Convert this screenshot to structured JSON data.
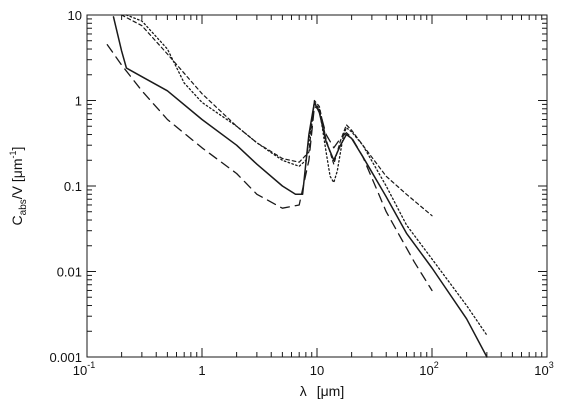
{
  "chart_data": {
    "type": "line",
    "title": "",
    "xlabel": {
      "symbol": "λ",
      "unit_open": "[",
      "unit": "μm",
      "unit_close": "]"
    },
    "ylabel": {
      "base": "C",
      "sub": "abs",
      "rest": "/V  [μm",
      "sup": "-1",
      "close": "]"
    },
    "x_scale": "log",
    "y_scale": "log",
    "xlim": [
      0.1,
      1000
    ],
    "ylim": [
      0.001,
      10
    ],
    "x_ticks": [
      {
        "value": 0.1,
        "base": "10",
        "exp": "-1"
      },
      {
        "value": 1,
        "base": "1",
        "exp": ""
      },
      {
        "value": 10,
        "base": "10",
        "exp": ""
      },
      {
        "value": 100,
        "base": "10",
        "exp": "2"
      },
      {
        "value": 1000,
        "base": "10",
        "exp": "3"
      }
    ],
    "y_ticks": [
      {
        "value": 0.001,
        "label": "0.001"
      },
      {
        "value": 0.01,
        "label": "0.01"
      },
      {
        "value": 0.1,
        "label": "0.1"
      },
      {
        "value": 1,
        "label": "1"
      },
      {
        "value": 10,
        "label": "10"
      }
    ],
    "grid": false,
    "legend": "none",
    "series": [
      {
        "style": "solid",
        "points": [
          [
            0.17,
            9.5
          ],
          [
            0.2,
            3.8
          ],
          [
            0.22,
            2.4
          ],
          [
            0.3,
            1.9
          ],
          [
            0.5,
            1.3
          ],
          [
            1,
            0.6
          ],
          [
            2,
            0.3
          ],
          [
            3,
            0.18
          ],
          [
            5,
            0.1
          ],
          [
            6.5,
            0.08
          ],
          [
            7.5,
            0.08
          ],
          [
            8.5,
            0.4
          ],
          [
            9.5,
            0.95
          ],
          [
            10.5,
            0.72
          ],
          [
            12,
            0.33
          ],
          [
            14,
            0.2
          ],
          [
            16,
            0.3
          ],
          [
            18,
            0.4
          ],
          [
            20,
            0.36
          ],
          [
            25,
            0.22
          ],
          [
            40,
            0.075
          ],
          [
            60,
            0.028
          ],
          [
            100,
            0.011
          ],
          [
            200,
            0.0028
          ],
          [
            300,
            0.001
          ]
        ]
      },
      {
        "style": "dashed",
        "points": [
          [
            0.15,
            4.5
          ],
          [
            0.2,
            2.6
          ],
          [
            0.3,
            1.3
          ],
          [
            0.5,
            0.6
          ],
          [
            1,
            0.28
          ],
          [
            2,
            0.14
          ],
          [
            3,
            0.08
          ],
          [
            5,
            0.055
          ],
          [
            7,
            0.06
          ],
          [
            8.5,
            0.2
          ],
          [
            9.5,
            0.85
          ],
          [
            10.5,
            0.78
          ],
          [
            12,
            0.4
          ],
          [
            14,
            0.28
          ],
          [
            16,
            0.36
          ],
          [
            18,
            0.42
          ],
          [
            20,
            0.37
          ],
          [
            25,
            0.22
          ],
          [
            40,
            0.05
          ],
          [
            70,
            0.013
          ],
          [
            100,
            0.006
          ]
        ]
      },
      {
        "style": "dotted",
        "points": [
          [
            0.22,
            10
          ],
          [
            0.3,
            8.5
          ],
          [
            0.5,
            4
          ],
          [
            0.7,
            1.6
          ],
          [
            1,
            0.95
          ],
          [
            2,
            0.5
          ],
          [
            3,
            0.32
          ],
          [
            5,
            0.2
          ],
          [
            7,
            0.17
          ],
          [
            8,
            0.2
          ],
          [
            9.5,
            0.95
          ],
          [
            10.5,
            0.8
          ],
          [
            12,
            0.25
          ],
          [
            13,
            0.13
          ],
          [
            14,
            0.11
          ],
          [
            15,
            0.15
          ],
          [
            17,
            0.4
          ],
          [
            18,
            0.48
          ],
          [
            20,
            0.43
          ],
          [
            25,
            0.3
          ],
          [
            40,
            0.1
          ],
          [
            60,
            0.035
          ],
          [
            100,
            0.014
          ],
          [
            200,
            0.004
          ],
          [
            300,
            0.0018
          ]
        ]
      },
      {
        "style": "short-dashed",
        "points": [
          [
            0.2,
            10
          ],
          [
            0.3,
            7.5
          ],
          [
            0.5,
            3.5
          ],
          [
            1,
            1.2
          ],
          [
            2,
            0.5
          ],
          [
            3,
            0.32
          ],
          [
            5,
            0.21
          ],
          [
            7,
            0.19
          ],
          [
            8.5,
            0.25
          ],
          [
            9.5,
            1.0
          ],
          [
            10.5,
            0.85
          ],
          [
            12,
            0.35
          ],
          [
            14,
            0.18
          ],
          [
            16,
            0.34
          ],
          [
            18,
            0.52
          ],
          [
            20,
            0.45
          ],
          [
            25,
            0.3
          ],
          [
            40,
            0.13
          ],
          [
            60,
            0.08
          ],
          [
            100,
            0.045
          ]
        ]
      }
    ]
  }
}
